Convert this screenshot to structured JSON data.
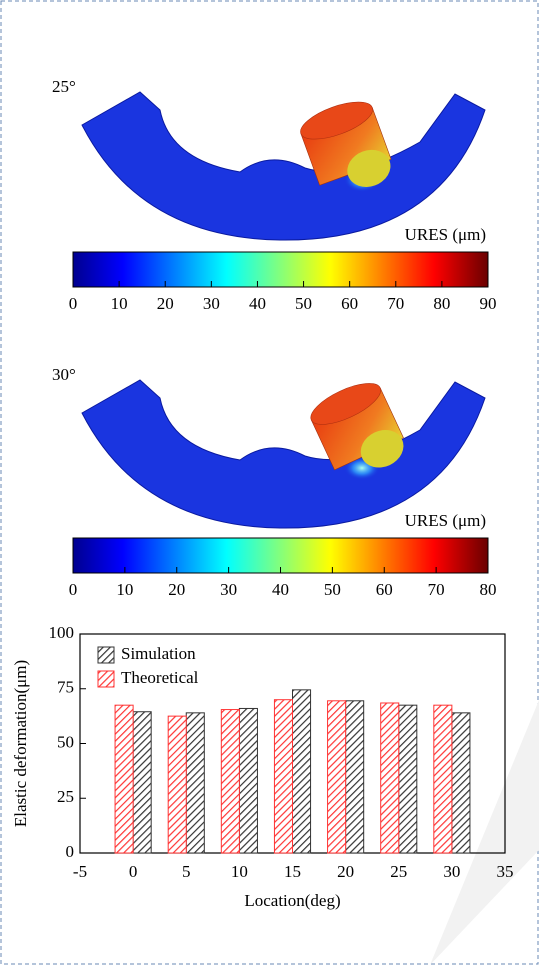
{
  "panels": [
    {
      "label": "25°",
      "colorbar": {
        "label": "URES (μm)",
        "lim": [
          0,
          90
        ],
        "ticks": [
          0,
          10,
          20,
          30,
          40,
          50,
          60,
          70,
          80,
          90
        ]
      }
    },
    {
      "label": "30°",
      "colorbar": {
        "label": "URES (μm)",
        "lim": [
          0,
          80
        ],
        "ticks": [
          0,
          10,
          20,
          30,
          40,
          50,
          60,
          70,
          80
        ]
      }
    }
  ],
  "chart_data": {
    "type": "bar",
    "x_label": "Location(deg)",
    "y_label": "Elastic deformation(μm)",
    "x": [
      0,
      5,
      10,
      15,
      20,
      25,
      30
    ],
    "series": [
      {
        "name": "Simulation",
        "color": "#333333",
        "values": [
          64.5,
          64,
          66,
          74.5,
          69.5,
          67.5,
          64
        ]
      },
      {
        "name": "Theoretical",
        "color": "#ff3333",
        "values": [
          67.5,
          62.5,
          65.5,
          70,
          69.5,
          68.5,
          67.5
        ]
      }
    ],
    "xlim": [
      -5,
      35
    ],
    "xticks": [
      -5,
      0,
      5,
      10,
      15,
      20,
      25,
      30,
      35
    ],
    "ylim": [
      0,
      100
    ],
    "yticks": [
      0,
      25,
      50,
      75,
      100
    ],
    "legend": "upper left"
  }
}
